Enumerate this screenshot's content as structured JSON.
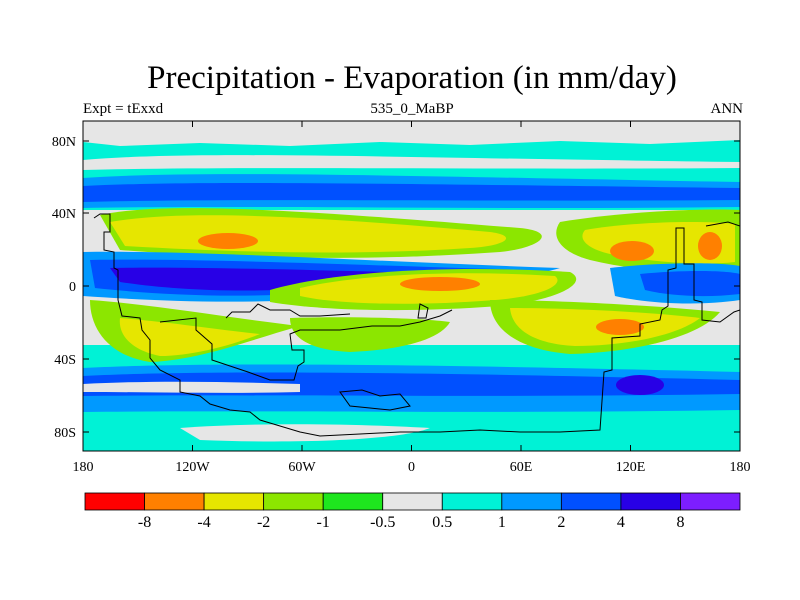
{
  "title": "Precipitation - Evaporation (in mm/day)",
  "subtitle_left": "Expt = tExxd",
  "subtitle_center": "535_0_MaBP",
  "subtitle_right": "ANN",
  "axes": {
    "x_ticks": [
      "180",
      "120W",
      "60W",
      "0",
      "60E",
      "120E",
      "180"
    ],
    "y_ticks": [
      "80N",
      "40N",
      "0",
      "40S",
      "80S"
    ]
  },
  "colorbar": {
    "colors": [
      "#ff0000",
      "#ff8000",
      "#e6e600",
      "#8ce600",
      "#1ee61e",
      "#e6e6e6",
      "#00f2d6",
      "#0099ff",
      "#0050ff",
      "#2800e6",
      "#7d1eff"
    ],
    "labels": [
      "-8",
      "-4",
      "-2",
      "-1",
      "-0.5",
      "0.5",
      "1",
      "2",
      "4",
      "8"
    ]
  },
  "colors": {
    "ocean_bg": "#00f2d6",
    "land": "#e6e6e6",
    "coast": "#000000"
  }
}
